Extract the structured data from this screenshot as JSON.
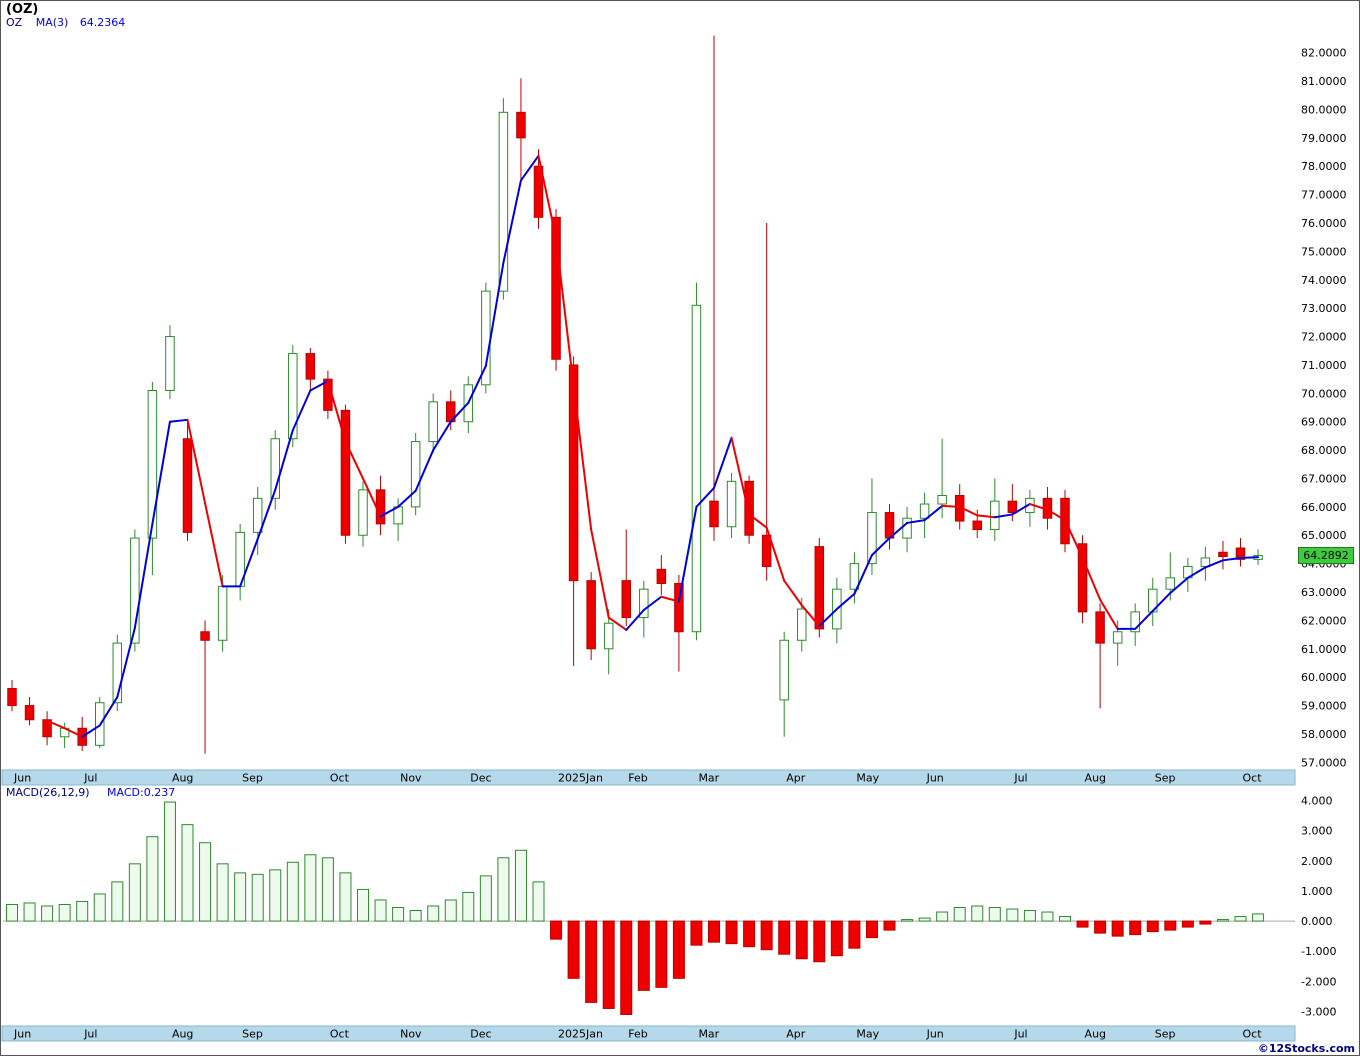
{
  "header": {
    "title": "(OZ)",
    "symbol": "OZ",
    "ma_label": "MA(3)",
    "ma_value": "64.2364"
  },
  "macd_panel": {
    "label": "MACD(26,12,9)",
    "value_label": "MACD:0.237"
  },
  "price_axis": {
    "ticks": [
      82,
      81,
      80,
      79,
      78,
      77,
      76,
      75,
      74,
      73,
      72,
      71,
      70,
      69,
      68,
      67,
      66,
      65,
      64,
      63,
      62,
      61,
      60,
      59,
      58,
      57
    ],
    "decimals": 4,
    "last_price_label": "64.2892"
  },
  "macd_axis": {
    "ticks": [
      4,
      3,
      2,
      1,
      0,
      -1,
      -2,
      -3
    ],
    "decimals": 3
  },
  "footer": {
    "watermark": "©12Stocks.com"
  },
  "colors": {
    "up": "#2e8b2e",
    "up_fill": "#ffffff",
    "down": "#ee0000",
    "down_stroke": "#bb0000",
    "ma_up": "#0000dd",
    "ma_down": "#ee0000",
    "strip_bg": "#b5d9ea",
    "strip_border": "#86b7cf",
    "tag_bg": "#3ecc3e",
    "tag_border": "#1d7a1d",
    "hist_pos_fill": "#effaef",
    "hist_pos_stroke": "#2e8b2e",
    "hist_neg_fill": "#ee0000",
    "hist_neg_stroke": "#bb0000",
    "zero_line": "#aaaaaa"
  },
  "chart_data": [
    {
      "type": "candlestick",
      "title": "(OZ)",
      "interval": "weekly",
      "ylim": [
        57,
        82
      ],
      "legend": "OZ MA(3) 64.2364",
      "last_close": 64.29,
      "months": [
        {
          "label": "Jun",
          "start": 0
        },
        {
          "label": "Jul",
          "start": 4
        },
        {
          "label": "Aug",
          "start": 9
        },
        {
          "label": "Sep",
          "start": 13
        },
        {
          "label": "Oct",
          "start": 18
        },
        {
          "label": "Nov",
          "start": 22
        },
        {
          "label": "Dec",
          "start": 26
        },
        {
          "label": "2025Jan",
          "start": 31
        },
        {
          "label": "Feb",
          "start": 35
        },
        {
          "label": "Mar",
          "start": 39
        },
        {
          "label": "Apr",
          "start": 44
        },
        {
          "label": "May",
          "start": 48
        },
        {
          "label": "Jun",
          "start": 52
        },
        {
          "label": "Jul",
          "start": 57
        },
        {
          "label": "Aug",
          "start": 61
        },
        {
          "label": "Sep",
          "start": 65
        },
        {
          "label": "Oct",
          "start": 70
        }
      ],
      "ohlc": [
        [
          59.6,
          59.9,
          58.8,
          59.0
        ],
        [
          59.0,
          59.3,
          58.3,
          58.5
        ],
        [
          58.5,
          58.8,
          57.6,
          57.9
        ],
        [
          57.9,
          58.4,
          57.5,
          58.2
        ],
        [
          58.2,
          58.6,
          57.4,
          57.6
        ],
        [
          57.6,
          59.3,
          57.5,
          59.1
        ],
        [
          59.1,
          61.5,
          58.8,
          61.2
        ],
        [
          61.2,
          65.2,
          60.9,
          64.9
        ],
        [
          64.9,
          70.4,
          63.6,
          70.1
        ],
        [
          70.1,
          72.4,
          69.8,
          72.0
        ],
        [
          68.4,
          69.0,
          64.8,
          65.1
        ],
        [
          61.6,
          62.0,
          57.3,
          61.3
        ],
        [
          61.3,
          63.6,
          60.9,
          63.2
        ],
        [
          63.2,
          65.4,
          62.7,
          65.1
        ],
        [
          65.1,
          66.7,
          64.3,
          66.3
        ],
        [
          66.3,
          68.7,
          65.9,
          68.4
        ],
        [
          68.4,
          71.7,
          68.1,
          71.4
        ],
        [
          71.4,
          71.6,
          70.1,
          70.5
        ],
        [
          70.5,
          70.8,
          69.1,
          69.4
        ],
        [
          69.4,
          69.6,
          64.7,
          65.0
        ],
        [
          65.0,
          66.9,
          64.6,
          66.6
        ],
        [
          66.6,
          67.1,
          65.0,
          65.4
        ],
        [
          65.4,
          66.3,
          64.8,
          66.0
        ],
        [
          66.0,
          68.6,
          65.7,
          68.3
        ],
        [
          68.3,
          70.0,
          67.9,
          69.7
        ],
        [
          69.7,
          70.1,
          68.7,
          69.0
        ],
        [
          69.0,
          70.6,
          68.6,
          70.3
        ],
        [
          70.3,
          73.9,
          70.0,
          73.6
        ],
        [
          73.6,
          80.4,
          73.3,
          79.9
        ],
        [
          79.9,
          81.1,
          77.5,
          79.0
        ],
        [
          78.0,
          78.6,
          75.8,
          76.2
        ],
        [
          76.2,
          76.5,
          70.8,
          71.2
        ],
        [
          71.0,
          71.3,
          60.4,
          63.4
        ],
        [
          63.4,
          63.7,
          60.6,
          61.0
        ],
        [
          61.0,
          62.4,
          60.1,
          61.9
        ],
        [
          63.4,
          65.2,
          61.8,
          62.1
        ],
        [
          62.1,
          63.4,
          61.4,
          63.1
        ],
        [
          63.8,
          64.3,
          62.9,
          63.3
        ],
        [
          63.3,
          63.6,
          60.2,
          61.6
        ],
        [
          61.6,
          73.9,
          61.3,
          73.1
        ],
        [
          66.2,
          82.6,
          64.8,
          65.3
        ],
        [
          65.3,
          67.2,
          64.9,
          66.9
        ],
        [
          66.9,
          67.1,
          64.7,
          65.0
        ],
        [
          65.0,
          76.0,
          63.4,
          63.9
        ],
        [
          59.2,
          61.6,
          57.9,
          61.3
        ],
        [
          61.3,
          62.8,
          60.9,
          62.4
        ],
        [
          64.6,
          64.9,
          61.4,
          61.7
        ],
        [
          61.7,
          63.5,
          61.2,
          63.1
        ],
        [
          63.1,
          64.4,
          62.6,
          64.0
        ],
        [
          64.0,
          67.0,
          63.6,
          65.8
        ],
        [
          65.8,
          66.1,
          64.5,
          64.9
        ],
        [
          64.9,
          66.0,
          64.4,
          65.6
        ],
        [
          65.6,
          66.5,
          64.9,
          66.1
        ],
        [
          66.1,
          68.4,
          65.6,
          66.4
        ],
        [
          66.4,
          66.8,
          65.2,
          65.5
        ],
        [
          65.5,
          65.9,
          64.9,
          65.2
        ],
        [
          65.2,
          67.0,
          64.8,
          66.2
        ],
        [
          66.2,
          66.8,
          65.5,
          65.8
        ],
        [
          65.8,
          66.6,
          65.3,
          66.3
        ],
        [
          66.3,
          66.7,
          65.2,
          65.6
        ],
        [
          66.3,
          66.6,
          64.4,
          64.7
        ],
        [
          64.7,
          65.0,
          61.9,
          62.3
        ],
        [
          62.3,
          62.6,
          58.9,
          61.2
        ],
        [
          61.2,
          62.0,
          60.4,
          61.6
        ],
        [
          61.6,
          62.6,
          61.1,
          62.3
        ],
        [
          62.3,
          63.5,
          61.8,
          63.1
        ],
        [
          63.1,
          64.4,
          62.7,
          63.5
        ],
        [
          63.5,
          64.2,
          63.0,
          63.9
        ],
        [
          63.9,
          64.6,
          63.4,
          64.2
        ],
        [
          64.4,
          64.8,
          63.8,
          64.25
        ],
        [
          64.55,
          64.9,
          63.9,
          64.15
        ],
        [
          64.15,
          64.5,
          63.95,
          64.29
        ]
      ],
      "overlay": {
        "name": "MA(3)",
        "period": 3,
        "last_value": 64.2364,
        "style": "direction-colored"
      }
    },
    {
      "type": "bar",
      "name": "MACD(26,12,9) histogram",
      "ylim": [
        -3,
        4
      ],
      "last_value": 0.237,
      "values": [
        0.55,
        0.6,
        0.5,
        0.55,
        0.65,
        0.9,
        1.3,
        1.9,
        2.8,
        3.95,
        3.2,
        2.6,
        1.9,
        1.6,
        1.55,
        1.7,
        1.95,
        2.2,
        2.1,
        1.6,
        1.05,
        0.7,
        0.45,
        0.35,
        0.5,
        0.7,
        0.95,
        1.5,
        2.1,
        2.35,
        1.3,
        -0.6,
        -1.9,
        -2.7,
        -2.9,
        -3.1,
        -2.3,
        -2.2,
        -1.9,
        -0.8,
        -0.7,
        -0.75,
        -0.85,
        -0.95,
        -1.1,
        -1.25,
        -1.35,
        -1.15,
        -0.9,
        -0.55,
        -0.3,
        0.05,
        0.1,
        0.3,
        0.45,
        0.5,
        0.45,
        0.4,
        0.35,
        0.3,
        0.15,
        -0.2,
        -0.4,
        -0.5,
        -0.45,
        -0.35,
        -0.3,
        -0.2,
        -0.1,
        0.05,
        0.15,
        0.237
      ]
    }
  ]
}
